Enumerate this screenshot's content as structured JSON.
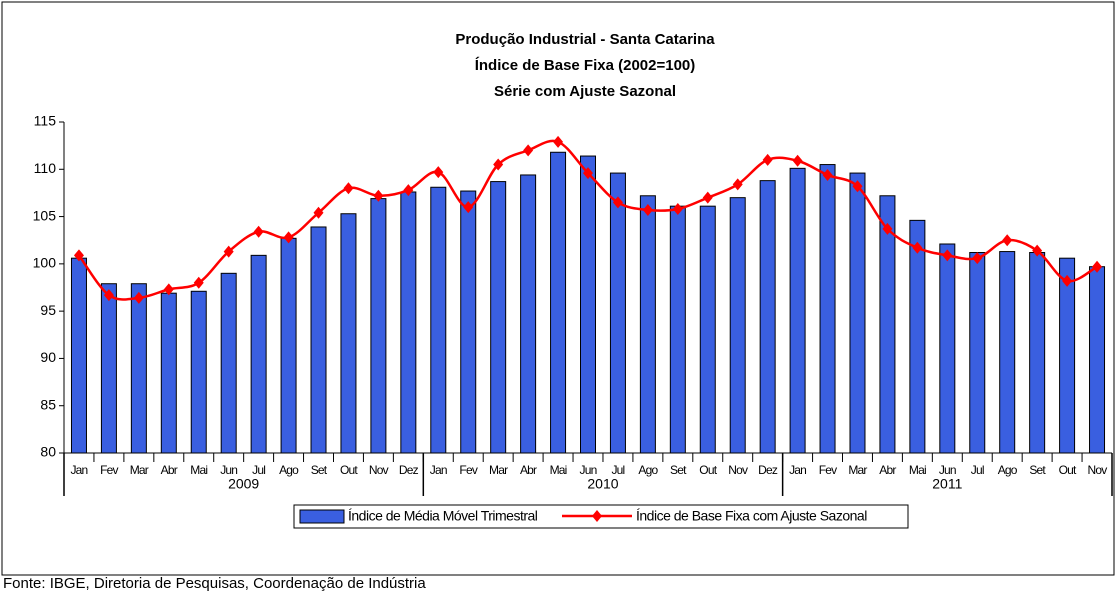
{
  "chart_data": {
    "type": "bar_line",
    "title": [
      "Produção Industrial - Santa Catarina",
      "Índice de Base Fixa (2002=100)",
      "Série com Ajuste Sazonal"
    ],
    "categories": [
      "Jan",
      "Fev",
      "Mar",
      "Abr",
      "Mai",
      "Jun",
      "Jul",
      "Ago",
      "Set",
      "Out",
      "Nov",
      "Dez",
      "Jan",
      "Fev",
      "Mar",
      "Abr",
      "Mai",
      "Jun",
      "Jul",
      "Ago",
      "Set",
      "Out",
      "Nov",
      "Dez",
      "Jan",
      "Fev",
      "Mar",
      "Abr",
      "Mai",
      "Jun",
      "Jul",
      "Ago",
      "Set",
      "Out",
      "Nov"
    ],
    "years": [
      "2009",
      "2010",
      "2011"
    ],
    "series": [
      {
        "name": "Índice de Média Móvel Trimestral",
        "type": "bar",
        "color": "#3a5fe0",
        "values": [
          100.6,
          97.9,
          97.9,
          96.9,
          97.1,
          99.0,
          100.9,
          102.7,
          103.9,
          105.3,
          106.9,
          107.6,
          108.1,
          107.7,
          108.7,
          109.4,
          111.8,
          111.4,
          109.6,
          107.2,
          106.1,
          106.1,
          107.0,
          108.8,
          110.1,
          110.5,
          109.6,
          107.2,
          104.6,
          102.1,
          101.2,
          101.3,
          101.2,
          100.6,
          99.7
        ]
      },
      {
        "name": "Índice de Base Fixa com Ajuste Sazonal",
        "type": "line",
        "color": "#ff0000",
        "values": [
          100.9,
          96.7,
          96.4,
          97.3,
          98.0,
          101.3,
          103.4,
          102.8,
          105.4,
          108.0,
          107.2,
          107.8,
          109.7,
          106.0,
          110.5,
          112.0,
          112.9,
          109.6,
          106.5,
          105.7,
          105.8,
          107.0,
          108.4,
          111.0,
          110.9,
          109.4,
          108.2,
          103.7,
          101.7,
          100.9,
          100.6,
          102.5,
          101.4,
          98.2,
          99.7
        ]
      }
    ],
    "ylim": [
      80,
      115
    ],
    "yticks": [
      80,
      85,
      90,
      95,
      100,
      105,
      110,
      115
    ],
    "grid": false,
    "legend": "bottom",
    "source": "Fonte: IBGE, Diretoria de Pesquisas, Coordenação de Indústria"
  }
}
